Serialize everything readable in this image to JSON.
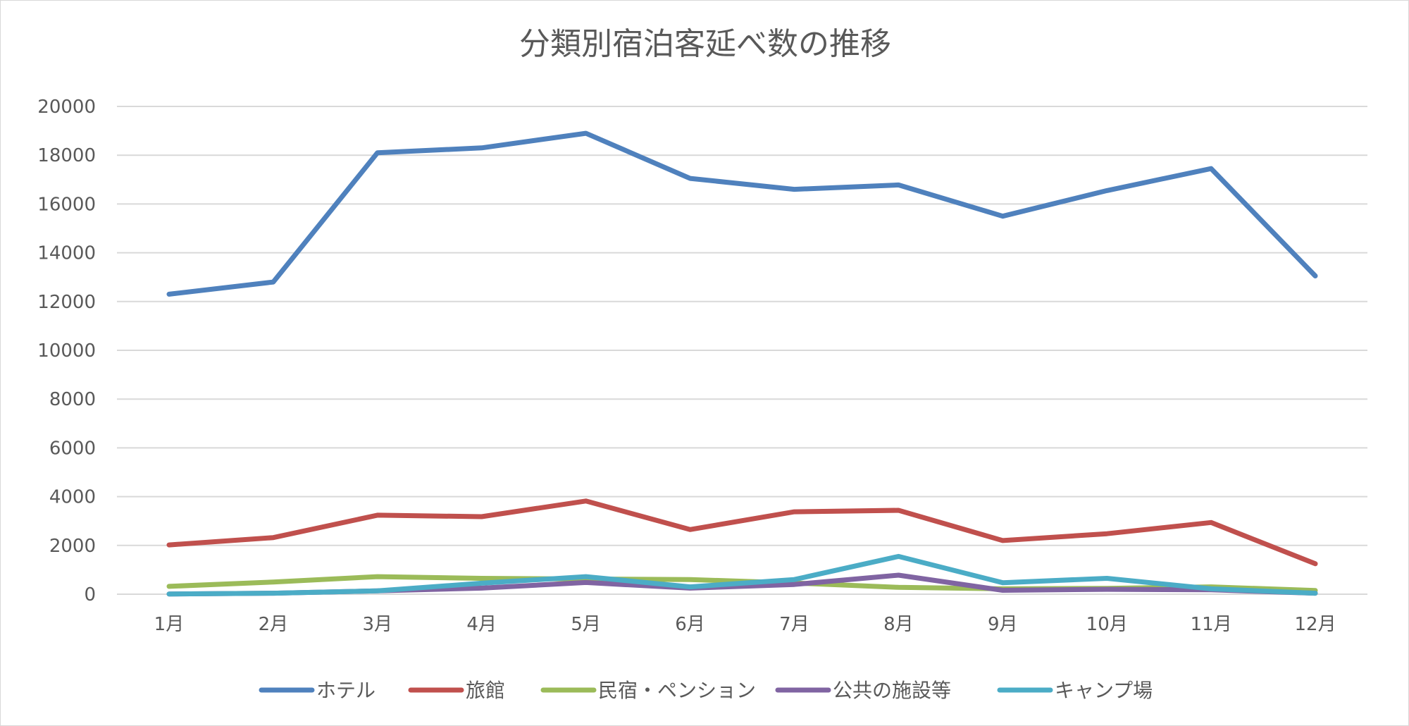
{
  "chart_data": {
    "type": "line",
    "title": "分類別宿泊客延べ数の推移",
    "xlabel": "",
    "ylabel": "",
    "ylim": [
      0,
      20000
    ],
    "yticks": [
      0,
      2000,
      4000,
      6000,
      8000,
      10000,
      12000,
      14000,
      16000,
      18000,
      20000
    ],
    "categories": [
      "1月",
      "2月",
      "3月",
      "4月",
      "5月",
      "6月",
      "7月",
      "8月",
      "9月",
      "10月",
      "11月",
      "12月"
    ],
    "grid": true,
    "legend_position": "bottom",
    "series": [
      {
        "name": "ホテル",
        "color": "#4f81bd",
        "values": [
          12300,
          12800,
          18100,
          18300,
          18900,
          17050,
          16600,
          16780,
          15500,
          16550,
          17450,
          13050
        ]
      },
      {
        "name": "旅館",
        "color": "#c0504d",
        "values": [
          2020,
          2320,
          3240,
          3180,
          3820,
          2650,
          3380,
          3440,
          2200,
          2480,
          2940,
          1250
        ]
      },
      {
        "name": "民宿・ペンション",
        "color": "#9bbb59",
        "values": [
          320,
          500,
          720,
          650,
          620,
          600,
          460,
          280,
          220,
          240,
          300,
          150
        ]
      },
      {
        "name": "公共の施設等",
        "color": "#8064a2",
        "values": [
          10,
          40,
          140,
          250,
          480,
          250,
          400,
          780,
          160,
          200,
          180,
          40
        ]
      },
      {
        "name": "キャンプ場",
        "color": "#4bacc6",
        "values": [
          10,
          40,
          140,
          450,
          720,
          300,
          600,
          1550,
          470,
          650,
          220,
          40
        ]
      }
    ]
  }
}
